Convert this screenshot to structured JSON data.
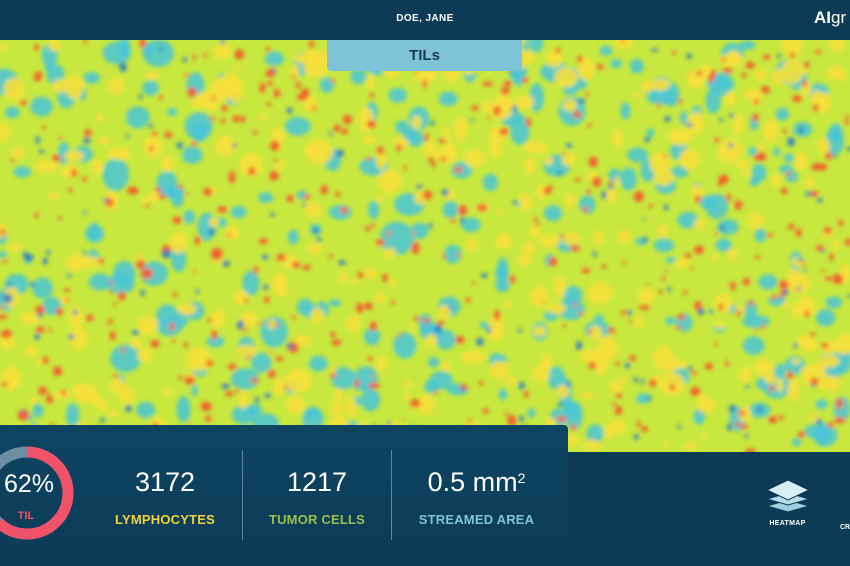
{
  "header": {
    "patient_name": "DOE, JANE",
    "brand_bold": "AI",
    "brand_rest": "gr"
  },
  "view_tab": {
    "label": "TILs"
  },
  "stats": {
    "til": {
      "percent_text": "62%",
      "label": "TIL",
      "fraction": 0.62,
      "color": "#f0526a",
      "track_color": "#6d8fa3"
    },
    "lymphocytes": {
      "value": "3172",
      "label": "LYMPHOCYTES",
      "color": "#f2d23a"
    },
    "tumor_cells": {
      "value": "1217",
      "label": "TUMOR CELLS",
      "color": "#9cbf4a"
    },
    "streamed_area": {
      "value": "0.5 mm",
      "superscript": "2",
      "label": "STREAMED AREA",
      "color": "#7ec4d6"
    }
  },
  "toolbar": {
    "heatmap_label": "HEATMAP",
    "next_label": "CR",
    "heatmap_icon": "layers-icon"
  },
  "heatmap_colors": {
    "base": "#c8e83f",
    "cool": "#49c4d8",
    "cold": "#2a78c8",
    "warm": "#f7e03a",
    "hot": "#f25a2a"
  }
}
